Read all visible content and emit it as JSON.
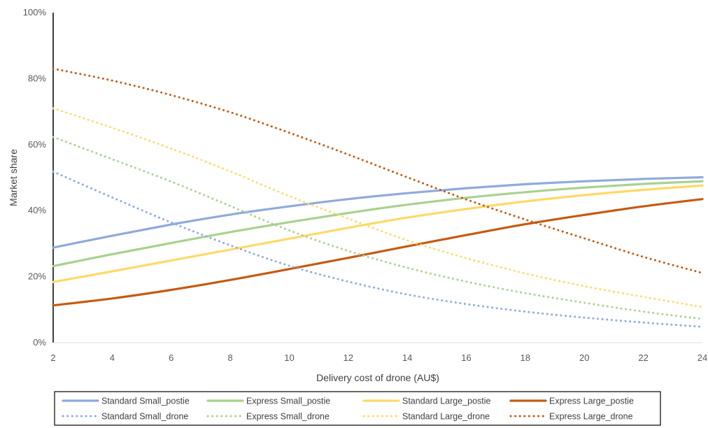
{
  "chart_data": {
    "type": "line",
    "title": "",
    "xlabel": "Delivery cost of drone (AU$)",
    "ylabel": "Market share",
    "xlim": [
      2,
      24
    ],
    "ylim": [
      0,
      100
    ],
    "x_ticks": [
      "2",
      "4",
      "6",
      "8",
      "10",
      "12",
      "14",
      "16",
      "18",
      "20",
      "22",
      "24"
    ],
    "y_ticks": [
      "0%",
      "20%",
      "40%",
      "60%",
      "80%",
      "100%"
    ],
    "grid": false,
    "legend_position": "bottom",
    "x": [
      2,
      4,
      6,
      8,
      10,
      12,
      14,
      16,
      18,
      20,
      22,
      24
    ],
    "series": [
      {
        "name": "Standard Small_postie",
        "color": "#8FAADC",
        "style": "solid",
        "values": [
          28.8,
          32.4,
          35.8,
          38.8,
          41.3,
          43.5,
          45.3,
          46.8,
          48.0,
          48.9,
          49.6,
          50.1
        ]
      },
      {
        "name": "Express Small_postie",
        "color": "#A9D18E",
        "style": "solid",
        "values": [
          23.2,
          26.8,
          30.2,
          33.5,
          36.5,
          39.3,
          41.8,
          43.9,
          45.6,
          47.0,
          48.1,
          48.9
        ]
      },
      {
        "name": "Standard Large_postie",
        "color": "#FFD966",
        "style": "solid",
        "values": [
          18.4,
          21.6,
          24.9,
          28.2,
          31.5,
          34.8,
          37.9,
          40.5,
          42.8,
          44.7,
          46.3,
          47.6
        ]
      },
      {
        "name": "Express Large_postie",
        "color": "#C55A11",
        "style": "solid",
        "values": [
          11.3,
          13.4,
          16.0,
          19.0,
          22.3,
          25.7,
          29.2,
          32.6,
          35.9,
          38.7,
          41.3,
          43.5
        ]
      },
      {
        "name": "Standard Small_drone",
        "color": "#8FAADC",
        "style": "dotted",
        "values": [
          51.8,
          44.0,
          36.4,
          29.5,
          23.3,
          18.5,
          14.6,
          11.7,
          9.4,
          7.6,
          6.1,
          4.8
        ]
      },
      {
        "name": "Express Small_drone",
        "color": "#A9D18E",
        "style": "dotted",
        "values": [
          62.3,
          55.6,
          48.8,
          41.4,
          34.0,
          27.8,
          22.7,
          18.5,
          15.0,
          12.1,
          9.4,
          7.2
        ]
      },
      {
        "name": "Standard Large_drone",
        "color": "#FFD966",
        "style": "dotted",
        "values": [
          71.0,
          65.1,
          58.8,
          51.9,
          44.4,
          37.6,
          31.0,
          25.6,
          21.0,
          17.1,
          13.9,
          10.8
        ]
      },
      {
        "name": "Express Large_drone",
        "color": "#C55A11",
        "style": "dotted",
        "values": [
          83.0,
          79.4,
          75.0,
          69.8,
          63.6,
          57.0,
          50.1,
          43.4,
          37.3,
          31.6,
          26.0,
          21.1
        ]
      }
    ]
  }
}
